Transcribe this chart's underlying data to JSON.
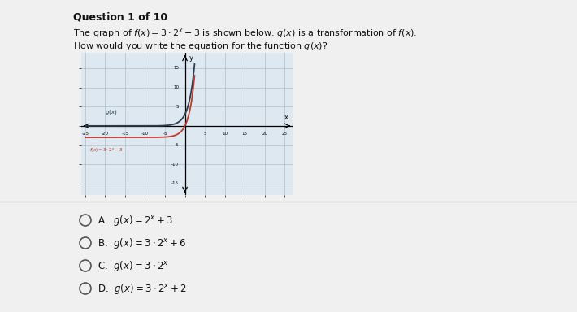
{
  "title": "Question 1 of 10",
  "desc1": "The graph of $f(x)=3\\cdot2^x-3$ is shown below. $g(x)$ is a transformation of $f(x)$.",
  "desc2": "How would you write the equation for the function $g(x)$?",
  "graph": {
    "xlim": [
      -26,
      27
    ],
    "ylim": [
      -18,
      19
    ],
    "xticks": [
      -25,
      -20,
      -15,
      -10,
      -5,
      5,
      10,
      15,
      20,
      25
    ],
    "yticks": [
      -15,
      -10,
      -5,
      5,
      10,
      15
    ],
    "xtick_labels": [
      "-25",
      "-20",
      "-15",
      "-10",
      "-5",
      "5",
      "10",
      "15",
      "20",
      "25"
    ],
    "ytick_labels": [
      "-15",
      "-10",
      "-5",
      "5",
      "10",
      "15"
    ],
    "f_label": "$f(x) = 3\\cdot2^x-3$",
    "g_label": "$g(x)$",
    "f_color": "#c0392b",
    "g_color": "#2c3e50",
    "grid_color": "#b0b8c8",
    "bg_color": "#dde8f0",
    "border_color": "#888888"
  },
  "options": [
    {
      "letter": "A",
      "text": "$g(x)=2^x+3$"
    },
    {
      "letter": "B",
      "text": "$g(x)=3\\cdot2^x+6$"
    },
    {
      "letter": "C",
      "text": "$g(x)=3\\cdot2^x$"
    },
    {
      "letter": "D",
      "text": "$g(x)=3\\cdot2^x+2$"
    }
  ],
  "page_bg": "#f0f0f0",
  "separator_color": "#cccccc",
  "circle_color": "#555555",
  "text_color": "#111111"
}
